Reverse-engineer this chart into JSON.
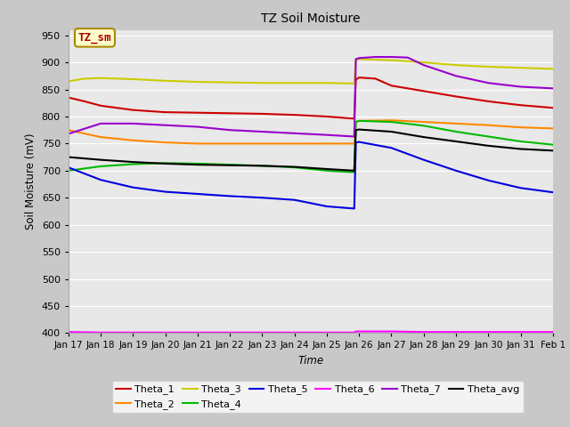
{
  "title": "TZ Soil Moisture",
  "xlabel": "Time",
  "ylabel": "Soil Moisture (mV)",
  "ylim": [
    400,
    960
  ],
  "yticks": [
    400,
    450,
    500,
    550,
    600,
    650,
    700,
    750,
    800,
    850,
    900,
    950
  ],
  "xtick_labels": [
    "Jan 17",
    "Jan 18",
    "Jan 19",
    "Jan 20",
    "Jan 21",
    "Jan 22",
    "Jan 23",
    "Jan 24",
    "Jan 25",
    "Jan 26",
    "Jan 27",
    "Jan 28",
    "Jan 29",
    "Jan 30",
    "Jan 31",
    "Feb 1"
  ],
  "fig_bg_color": "#c8c8c8",
  "plot_bg_color": "#e8e8e8",
  "series": {
    "Theta_1": {
      "color": "#cc0000",
      "points": [
        [
          17,
          835
        ],
        [
          17.5,
          828
        ],
        [
          18,
          820
        ],
        [
          19,
          812
        ],
        [
          20,
          808
        ],
        [
          21,
          807
        ],
        [
          22,
          806
        ],
        [
          23,
          805
        ],
        [
          24,
          803
        ],
        [
          25,
          800
        ],
        [
          25.85,
          796
        ],
        [
          25.9,
          868
        ],
        [
          26.0,
          872
        ],
        [
          26.5,
          870
        ],
        [
          27,
          857
        ],
        [
          28,
          847
        ],
        [
          29,
          837
        ],
        [
          30,
          828
        ],
        [
          31,
          821
        ],
        [
          32,
          816
        ]
      ]
    },
    "Theta_2": {
      "color": "#ff8800",
      "points": [
        [
          17,
          775
        ],
        [
          18,
          762
        ],
        [
          19,
          756
        ],
        [
          20,
          752
        ],
        [
          21,
          750
        ],
        [
          22,
          750
        ],
        [
          23,
          750
        ],
        [
          24,
          750
        ],
        [
          25,
          750
        ],
        [
          25.85,
          750
        ],
        [
          25.9,
          790
        ],
        [
          26.0,
          792
        ],
        [
          27,
          793
        ],
        [
          28,
          790
        ],
        [
          29,
          787
        ],
        [
          30,
          784
        ],
        [
          31,
          780
        ],
        [
          32,
          778
        ]
      ]
    },
    "Theta_3": {
      "color": "#cccc00",
      "points": [
        [
          17,
          865
        ],
        [
          17.5,
          870
        ],
        [
          18,
          871
        ],
        [
          19,
          869
        ],
        [
          20,
          866
        ],
        [
          21,
          864
        ],
        [
          22,
          863
        ],
        [
          23,
          862
        ],
        [
          24,
          862
        ],
        [
          25,
          862
        ],
        [
          25.85,
          861
        ],
        [
          25.9,
          905
        ],
        [
          26.0,
          906
        ],
        [
          26.5,
          905
        ],
        [
          27,
          904
        ],
        [
          28,
          900
        ],
        [
          29,
          895
        ],
        [
          30,
          892
        ],
        [
          31,
          890
        ],
        [
          32,
          888
        ]
      ]
    },
    "Theta_4": {
      "color": "#00bb00",
      "points": [
        [
          17,
          700
        ],
        [
          18,
          708
        ],
        [
          19,
          712
        ],
        [
          20,
          714
        ],
        [
          21,
          713
        ],
        [
          22,
          711
        ],
        [
          23,
          709
        ],
        [
          24,
          706
        ],
        [
          25,
          700
        ],
        [
          25.85,
          697
        ],
        [
          25.9,
          790
        ],
        [
          26.0,
          792
        ],
        [
          27,
          790
        ],
        [
          28,
          783
        ],
        [
          29,
          772
        ],
        [
          30,
          763
        ],
        [
          31,
          754
        ],
        [
          32,
          748
        ]
      ]
    },
    "Theta_5": {
      "color": "#0000dd",
      "points": [
        [
          17,
          706
        ],
        [
          18,
          683
        ],
        [
          19,
          669
        ],
        [
          20,
          661
        ],
        [
          21,
          657
        ],
        [
          22,
          653
        ],
        [
          23,
          650
        ],
        [
          24,
          646
        ],
        [
          25,
          634
        ],
        [
          25.85,
          630
        ],
        [
          25.9,
          752
        ],
        [
          26.0,
          753
        ],
        [
          27,
          742
        ],
        [
          28,
          720
        ],
        [
          29,
          700
        ],
        [
          30,
          682
        ],
        [
          31,
          668
        ],
        [
          32,
          660
        ]
      ]
    },
    "Theta_6": {
      "color": "#ff00ff",
      "points": [
        [
          17,
          402
        ],
        [
          18,
          401
        ],
        [
          19,
          401
        ],
        [
          20,
          401
        ],
        [
          21,
          401
        ],
        [
          22,
          401
        ],
        [
          23,
          401
        ],
        [
          24,
          401
        ],
        [
          25,
          401
        ],
        [
          25.85,
          401
        ],
        [
          25.9,
          403
        ],
        [
          26.0,
          403
        ],
        [
          27,
          403
        ],
        [
          28,
          402
        ],
        [
          29,
          402
        ],
        [
          30,
          402
        ],
        [
          31,
          402
        ],
        [
          32,
          402
        ]
      ]
    },
    "Theta_7": {
      "color": "#9900cc",
      "points": [
        [
          17,
          768
        ],
        [
          18,
          787
        ],
        [
          19,
          787
        ],
        [
          20,
          784
        ],
        [
          21,
          781
        ],
        [
          22,
          775
        ],
        [
          23,
          772
        ],
        [
          24,
          769
        ],
        [
          25,
          766
        ],
        [
          25.85,
          763
        ],
        [
          25.9,
          906
        ],
        [
          26.0,
          908
        ],
        [
          26.5,
          910
        ],
        [
          27.0,
          910
        ],
        [
          27.5,
          909
        ],
        [
          28,
          895
        ],
        [
          29,
          875
        ],
        [
          30,
          862
        ],
        [
          31,
          855
        ],
        [
          32,
          852
        ]
      ]
    },
    "Theta_avg": {
      "color": "#000000",
      "points": [
        [
          17,
          725
        ],
        [
          18,
          720
        ],
        [
          19,
          716
        ],
        [
          20,
          713
        ],
        [
          21,
          711
        ],
        [
          22,
          710
        ],
        [
          23,
          709
        ],
        [
          24,
          707
        ],
        [
          25,
          703
        ],
        [
          25.85,
          700
        ],
        [
          25.9,
          775
        ],
        [
          26.0,
          776
        ],
        [
          27,
          772
        ],
        [
          28,
          762
        ],
        [
          29,
          754
        ],
        [
          30,
          746
        ],
        [
          31,
          740
        ],
        [
          32,
          737
        ]
      ]
    }
  },
  "legend_box": {
    "text": "TZ_sm",
    "bg": "#ffffcc",
    "border": "#aa8800"
  }
}
